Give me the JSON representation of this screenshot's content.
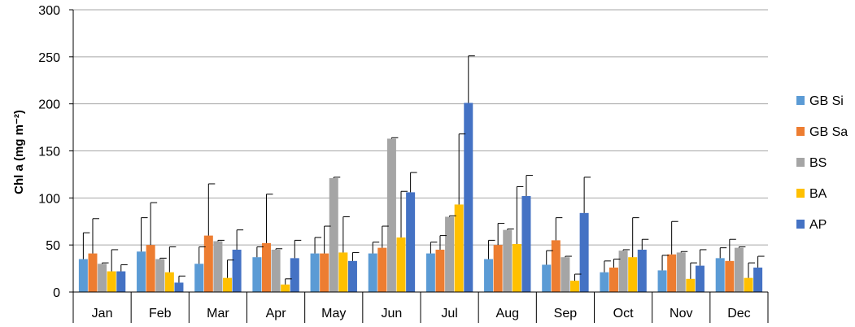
{
  "chart_data": {
    "type": "bar",
    "ylabel": "Chl a (mg m⁻²)",
    "ylim": [
      0,
      300
    ],
    "yticks": [
      0,
      50,
      100,
      150,
      200,
      250,
      300
    ],
    "grid": "horizontal",
    "legend_position": "right",
    "error_bars": "positive",
    "categories": [
      "Jan",
      "Feb",
      "Mar",
      "Apr",
      "May",
      "Jun",
      "Jul",
      "Aug",
      "Sep",
      "Oct",
      "Nov",
      "Dec"
    ],
    "series": [
      {
        "name": "GB Si",
        "color": "#5b9bd5",
        "values": [
          35,
          43,
          30,
          37,
          41,
          41,
          41,
          35,
          29,
          21,
          23,
          36
        ],
        "errors": [
          28,
          36,
          18,
          11,
          17,
          12,
          12,
          20,
          15,
          12,
          16,
          11
        ]
      },
      {
        "name": "GB Sa",
        "color": "#ed7d31",
        "values": [
          41,
          50,
          60,
          52,
          41,
          47,
          45,
          50,
          55,
          26,
          40,
          33
        ],
        "errors": [
          37,
          45,
          55,
          52,
          29,
          23,
          15,
          23,
          24,
          9,
          35,
          23
        ]
      },
      {
        "name": "BS",
        "color": "#a5a5a5",
        "values": [
          30,
          35,
          54,
          45,
          121,
          163,
          80,
          66,
          37,
          44,
          42,
          47
        ],
        "errors": [
          1,
          1,
          1,
          1,
          1,
          1,
          1,
          1,
          1,
          1,
          1,
          1
        ]
      },
      {
        "name": "BA",
        "color": "#ffc000",
        "values": [
          22,
          21,
          15,
          8,
          42,
          58,
          93,
          51,
          12,
          37,
          14,
          15
        ],
        "errors": [
          23,
          27,
          19,
          6,
          38,
          49,
          75,
          61,
          7,
          42,
          17,
          16
        ]
      },
      {
        "name": "AP",
        "color": "#4472c4",
        "values": [
          22,
          10,
          45,
          36,
          33,
          106,
          201,
          102,
          84,
          45,
          28,
          26
        ],
        "errors": [
          7,
          7,
          21,
          19,
          9,
          21,
          50,
          22,
          38,
          11,
          17,
          12
        ]
      }
    ]
  }
}
